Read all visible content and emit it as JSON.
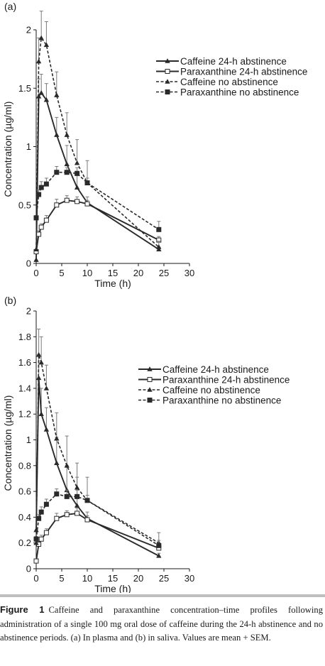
{
  "colors": {
    "axis": "#1a1a1a",
    "series": "#2a2a2a",
    "error_bar": "#7a7a7a"
  },
  "chart_data": [
    {
      "type": "line",
      "panel_label": "(a)",
      "xlabel": "Time (h)",
      "ylabel": "Concentration (µg/ml)",
      "xlim": [
        0,
        30
      ],
      "ylim": [
        0,
        2
      ],
      "xticks": [
        0,
        5,
        10,
        15,
        20,
        25,
        30
      ],
      "yticks": [
        0,
        0.5,
        1,
        1.5,
        2
      ],
      "grid": false,
      "legend_position": "top-right",
      "series": [
        {
          "name": "Caffeine 24-h abstinence",
          "line": "solid",
          "marker": "triangle-filled",
          "x": [
            0,
            0.5,
            1,
            2,
            4,
            6,
            8,
            10,
            24
          ],
          "y": [
            0.03,
            1.43,
            1.46,
            1.4,
            1.1,
            0.85,
            0.65,
            0.52,
            0.12
          ],
          "err": [
            0,
            0.15,
            0.16,
            0.14,
            0.15,
            0.16,
            0.14,
            0.05,
            0.02
          ]
        },
        {
          "name": "Paraxanthine 24-h abstinence",
          "line": "solid",
          "marker": "square-open",
          "x": [
            0,
            0.5,
            1,
            2,
            4,
            6,
            8,
            10,
            24
          ],
          "y": [
            0.1,
            0.25,
            0.31,
            0.37,
            0.5,
            0.54,
            0.53,
            0.51,
            0.2
          ],
          "err": [
            0.02,
            0.03,
            0.03,
            0.04,
            0.05,
            0.04,
            0.04,
            0.03,
            0.03
          ]
        },
        {
          "name": "Caffeine no abstinence",
          "line": "dashed",
          "marker": "triangle-filled",
          "x": [
            0,
            0.5,
            1,
            2,
            4,
            6,
            8,
            10,
            24
          ],
          "y": [
            0.12,
            1.73,
            1.93,
            1.87,
            1.44,
            1.1,
            0.86,
            0.69,
            0.14
          ],
          "err": [
            0,
            0.2,
            0.23,
            0.2,
            0.2,
            0.19,
            0.2,
            0.19,
            0.05
          ]
        },
        {
          "name": "Paraxanthine no abstinence",
          "line": "dashed",
          "marker": "square-filled",
          "x": [
            0,
            0.5,
            1,
            2,
            4,
            6,
            8,
            10,
            24
          ],
          "y": [
            0.39,
            0.59,
            0.65,
            0.68,
            0.78,
            0.78,
            0.77,
            0.69,
            0.29
          ],
          "err": [
            0.02,
            0.04,
            0.05,
            0.05,
            0.05,
            0.04,
            0.05,
            0.04,
            0.07
          ]
        }
      ]
    },
    {
      "type": "line",
      "panel_label": "(b)",
      "xlabel": "Time (h)",
      "ylabel": "Concentration (µg/ml)",
      "xlim": [
        0,
        30
      ],
      "ylim": [
        0,
        2
      ],
      "xticks": [
        0,
        5,
        10,
        15,
        20,
        25,
        30
      ],
      "yticks": [
        0,
        0.2,
        0.4,
        0.6,
        0.8,
        1,
        1.2,
        1.4,
        1.6,
        1.8,
        2
      ],
      "grid": false,
      "legend_position": "top-right",
      "series": [
        {
          "name": "Caffeine 24-h abstinence",
          "line": "solid",
          "marker": "triangle-filled",
          "x": [
            0,
            0.5,
            1,
            2,
            4,
            6,
            8,
            10,
            24
          ],
          "y": [
            0.3,
            1.48,
            1.2,
            1.08,
            0.82,
            0.61,
            0.49,
            0.39,
            0.1
          ],
          "err": [
            0,
            0.18,
            0.2,
            0.17,
            0.2,
            0.19,
            0.22,
            0.05,
            0.02
          ]
        },
        {
          "name": "Paraxanthine 24-h abstinence",
          "line": "solid",
          "marker": "square-open",
          "x": [
            0,
            0.5,
            1,
            2,
            4,
            6,
            8,
            10,
            24
          ],
          "y": [
            0.06,
            0.19,
            0.23,
            0.28,
            0.39,
            0.42,
            0.43,
            0.38,
            0.16
          ],
          "err": [
            0.01,
            0.02,
            0.03,
            0.03,
            0.04,
            0.03,
            0.04,
            0.03,
            0.03
          ]
        },
        {
          "name": "Caffeine no abstinence",
          "line": "dashed",
          "marker": "triangle-filled",
          "x": [
            0,
            0.5,
            1,
            2,
            4,
            6,
            8,
            10,
            24
          ],
          "y": [
            0.2,
            1.66,
            1.6,
            1.4,
            1.01,
            0.8,
            0.63,
            0.53,
            0.2
          ],
          "err": [
            0,
            0.2,
            0.2,
            0.18,
            0.2,
            0.23,
            0.19,
            0.18,
            0.08
          ]
        },
        {
          "name": "Paraxanthine no abstinence",
          "line": "dashed",
          "marker": "square-filled",
          "x": [
            0,
            0.5,
            1,
            2,
            4,
            6,
            8,
            10,
            24
          ],
          "y": [
            0.23,
            0.39,
            0.44,
            0.5,
            0.58,
            0.56,
            0.56,
            0.53,
            0.18
          ],
          "err": [
            0.02,
            0.03,
            0.04,
            0.04,
            0.04,
            0.05,
            0.05,
            0.04,
            0.04
          ]
        }
      ]
    }
  ],
  "caption": {
    "label": "Figure 1",
    "text": "Caffeine and paraxanthine concentration–time profiles following administration of a single 100 mg oral dose of caffeine during the 24-h abstinence and no abstinence periods. (a) In plasma and (b) in saliva. Values are mean + SEM."
  }
}
